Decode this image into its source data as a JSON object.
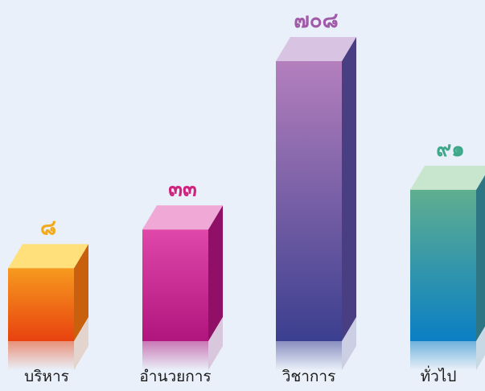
{
  "chart_data": {
    "type": "bar",
    "categories": [
      "บริหาร",
      "อำนวยการ",
      "วิชาการ",
      "ทั่วไป"
    ],
    "values": [
      8,
      33,
      708,
      91
    ],
    "value_labels": [
      "๘",
      "๓๓",
      "๗๐๘",
      "๙๑"
    ],
    "title": "",
    "xlabel": "",
    "ylabel": "",
    "ylim": [
      0,
      708
    ],
    "grid": false,
    "legend": "none",
    "style": "3d-columns-with-reflection",
    "colors": [
      {
        "top": "#ffe07a",
        "front_top": "#f79a1e",
        "front_bottom": "#e8420f",
        "side": "#c9600d",
        "label": "#f2a91c"
      },
      {
        "top": "#f0a8d6",
        "front_top": "#e047a9",
        "front_bottom": "#b0157e",
        "side": "#8f1066",
        "label": "#d0237e"
      },
      {
        "top": "#d8c4e2",
        "front_top": "#b47fbd",
        "front_bottom": "#3b3f8f",
        "side": "#4a3e83",
        "label": "#a05aa8"
      },
      {
        "top": "#c7e6cd",
        "front_top": "#5fae8f",
        "front_bottom": "#0a7fc4",
        "side": "#2e7683",
        "label": "#3fa88b"
      }
    ]
  }
}
